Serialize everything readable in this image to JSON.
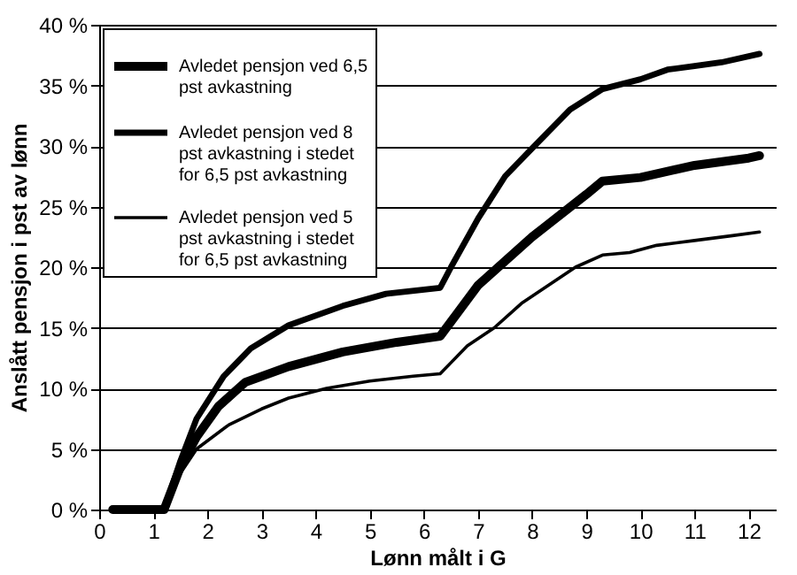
{
  "chart_data": {
    "type": "line",
    "xlabel": "Lønn målt i G",
    "ylabel": "Anslått pensjon i pst av lønn",
    "xlim": [
      0,
      12.5
    ],
    "xticks": [
      0,
      1,
      2,
      3,
      4,
      5,
      6,
      7,
      8,
      9,
      10,
      11,
      12
    ],
    "ylim": [
      0,
      40
    ],
    "yticks": [
      {
        "value": 0,
        "label": "0 %"
      },
      {
        "value": 5,
        "label": "5 %"
      },
      {
        "value": 10,
        "label": "10 %"
      },
      {
        "value": 15,
        "label": "15 %"
      },
      {
        "value": 20,
        "label": "20 %"
      },
      {
        "value": 25,
        "label": "25 %"
      },
      {
        "value": 30,
        "label": "30 %"
      },
      {
        "value": 35,
        "label": "35 %"
      },
      {
        "value": 40,
        "label": "40 %"
      }
    ],
    "grid": "y",
    "legend": "top left",
    "marker": "none",
    "line_style": "solid",
    "series": [
      {
        "name": "Avledet pensjon ved 6,5 pst avkastning",
        "color": "#000000",
        "x": [
          0.25,
          1.2,
          1.5,
          1.8,
          2.2,
          2.7,
          3.5,
          4.5,
          5.5,
          6.3,
          7,
          8,
          9,
          9.3,
          10,
          11,
          12,
          12.2
        ],
        "values": [
          0,
          0,
          3.5,
          6,
          8.5,
          10.5,
          11.8,
          13,
          13.8,
          14.3,
          18.5,
          22.5,
          26,
          27.1,
          27.4,
          28.4,
          29,
          29.2
        ]
      },
      {
        "name": "Avledet pensjon ved 8 pst avkastning i stedet for 6,5 pst avkastning",
        "color": "#000000",
        "x": [
          0.25,
          1.2,
          1.5,
          1.8,
          2.3,
          2.8,
          3.5,
          4.5,
          5.3,
          6.3,
          6.5,
          7,
          7.5,
          8,
          8.7,
          9.3,
          10,
          10.5,
          11,
          11.5,
          12.2
        ],
        "values": [
          0,
          0,
          4,
          7.5,
          11,
          13.3,
          15.2,
          16.8,
          17.8,
          18.3,
          20,
          24,
          27.5,
          29.8,
          33,
          34.7,
          35.5,
          36.3,
          36.6,
          36.9,
          37.6
        ]
      },
      {
        "name": "Avledet pensjon ved 5 pst avkastning i stedet for 6,5 pst avkastning",
        "color": "#000000",
        "x": [
          0.25,
          1.2,
          1.5,
          1.8,
          2.4,
          3,
          3.5,
          4.2,
          5,
          5.8,
          6.3,
          6.8,
          7.3,
          7.8,
          8.3,
          8.8,
          9.3,
          9.8,
          10.3,
          11,
          11.7,
          12.2
        ],
        "values": [
          0,
          0,
          3,
          5,
          7,
          8.3,
          9.2,
          10,
          10.6,
          11,
          11.2,
          13.5,
          15,
          17,
          18.5,
          20,
          21,
          21.2,
          21.8,
          22.2,
          22.6,
          22.9
        ]
      }
    ]
  }
}
